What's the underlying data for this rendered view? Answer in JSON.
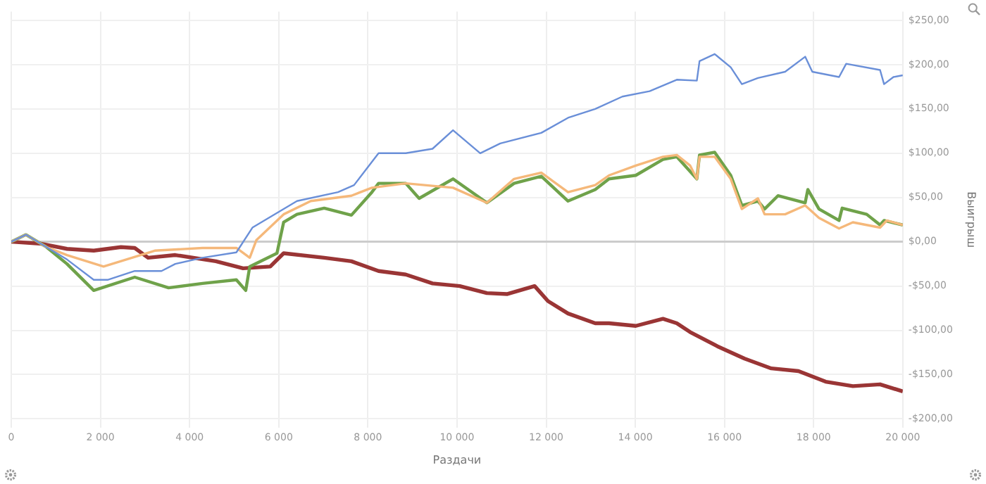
{
  "chart_data": {
    "type": "line",
    "xlabel": "Раздачи",
    "ylabel": "Выигрыш",
    "xlim": [
      0,
      20000
    ],
    "ylim": [
      -210,
      260
    ],
    "xticks": [
      0,
      {
        "value": 2000,
        "label": "2 000"
      },
      {
        "value": 4000,
        "label": "4 000"
      },
      {
        "value": 6000,
        "label": "6 000"
      },
      {
        "value": 8000,
        "label": "8 000"
      },
      {
        "value": 10000,
        "label": "10 000"
      },
      {
        "value": 12000,
        "label": "12 000"
      },
      {
        "value": 14000,
        "label": "14 000"
      },
      {
        "value": 16000,
        "label": "16 000"
      },
      {
        "value": 18000,
        "label": "18 000"
      },
      {
        "value": 20000,
        "label": "20 000"
      }
    ],
    "yticks": [
      {
        "value": -200,
        "label": "-$200,00"
      },
      {
        "value": -150,
        "label": "-$150,00"
      },
      {
        "value": -100,
        "label": "-$100,00"
      },
      {
        "value": -50,
        "label": "-$50,00"
      },
      {
        "value": 0,
        "label": "$0,00"
      },
      {
        "value": 50,
        "label": "$50,00"
      },
      {
        "value": 100,
        "label": "$100,00"
      },
      {
        "value": 150,
        "label": "$150,00"
      },
      {
        "value": 200,
        "label": "$200,00"
      },
      {
        "value": 250,
        "label": "$250,00"
      }
    ],
    "grid": true,
    "legend": false,
    "marker": "none",
    "line_style": "solid",
    "series": [
      {
        "color": "#6a8fd8",
        "x": [
          0,
          330,
          790,
          1250,
          1850,
          2160,
          2770,
          3370,
          3680,
          4290,
          5050,
          5410,
          6410,
          7330,
          7690,
          8240,
          8850,
          9450,
          9910,
          10520,
          10970,
          11890,
          12490,
          13100,
          13710,
          14320,
          14930,
          15380,
          15440,
          15780,
          16140,
          16390,
          16750,
          17360,
          17810,
          17970,
          18570,
          18730,
          19490,
          19580,
          19790,
          20000
        ],
        "values": [
          0,
          8,
          -6,
          -20,
          -43,
          -43,
          -33,
          -33,
          -25,
          -18,
          -12,
          16,
          46,
          56,
          64,
          100,
          100,
          105,
          126,
          100,
          111,
          123,
          140,
          150,
          164,
          170,
          183,
          182,
          204,
          212,
          197,
          178,
          185,
          192,
          209,
          192,
          186,
          201,
          194,
          178,
          186,
          188
        ]
      },
      {
        "color": "#f5b87a",
        "x": [
          0,
          330,
          790,
          1250,
          2070,
          3220,
          4290,
          5050,
          5350,
          5500,
          6110,
          6720,
          7630,
          8090,
          8850,
          9910,
          10670,
          11280,
          11890,
          12490,
          13100,
          13410,
          14010,
          14620,
          14930,
          15230,
          15380,
          15440,
          15780,
          16140,
          16390,
          16750,
          16900,
          17360,
          17810,
          18120,
          18570,
          18880,
          19490,
          19640,
          20000
        ],
        "values": [
          0,
          8,
          -6,
          -15,
          -28,
          -10,
          -7,
          -7,
          -18,
          2,
          31,
          46,
          52,
          61,
          66,
          61,
          44,
          71,
          78,
          56,
          64,
          75,
          86,
          96,
          98,
          86,
          71,
          96,
          96,
          71,
          37,
          49,
          31,
          31,
          41,
          27,
          15,
          22,
          16,
          24,
          19
        ]
      },
      {
        "color": "#6fa24a",
        "x": [
          0,
          330,
          790,
          1250,
          1850,
          2770,
          3530,
          4290,
          5050,
          5260,
          5350,
          5960,
          6110,
          6410,
          7020,
          7630,
          8090,
          8240,
          8850,
          9150,
          9910,
          10670,
          11280,
          11890,
          12490,
          13100,
          13410,
          14010,
          14620,
          14930,
          15380,
          15440,
          15780,
          16140,
          16390,
          16750,
          16900,
          17200,
          17810,
          17870,
          18120,
          18570,
          18640,
          19190,
          19490,
          19580,
          20000
        ],
        "values": [
          0,
          8,
          -6,
          -25,
          -55,
          -40,
          -52,
          -47,
          -43,
          -55,
          -28,
          -13,
          22,
          31,
          38,
          30,
          56,
          66,
          66,
          49,
          71,
          44,
          66,
          74,
          46,
          59,
          71,
          75,
          93,
          96,
          71,
          98,
          101,
          75,
          41,
          46,
          37,
          52,
          44,
          59,
          37,
          24,
          38,
          31,
          19,
          24,
          19
        ]
      },
      {
        "color": "#9a3535",
        "x": [
          0,
          640,
          1250,
          1850,
          2460,
          2770,
          3070,
          3680,
          4590,
          5200,
          5810,
          6110,
          7020,
          7630,
          8240,
          8850,
          9450,
          10060,
          10670,
          11130,
          11740,
          12040,
          12490,
          13100,
          13410,
          14010,
          14620,
          14930,
          15230,
          15840,
          16450,
          17050,
          17660,
          18270,
          18880,
          19490,
          20000
        ],
        "values": [
          0,
          -2,
          -8,
          -10,
          -6,
          -7,
          -18,
          -15,
          -22,
          -30,
          -28,
          -13,
          -18,
          -22,
          -33,
          -37,
          -47,
          -50,
          -58,
          -59,
          -50,
          -67,
          -81,
          -92,
          -92,
          -95,
          -87,
          -92,
          -102,
          -118,
          -132,
          -143,
          -146,
          -158,
          -163,
          -161,
          -169
        ]
      }
    ]
  }
}
